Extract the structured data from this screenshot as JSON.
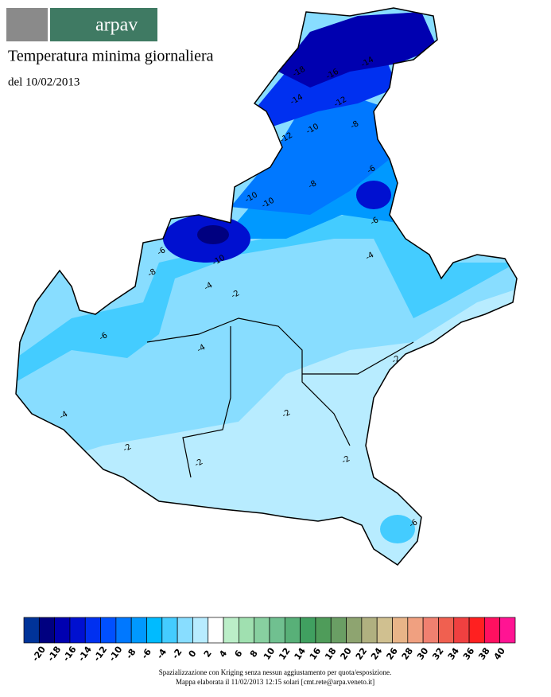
{
  "header": {
    "logo_text": "arpav",
    "title": "Temperatura minima giornaliera",
    "subtitle": "del 10/02/2013"
  },
  "map": {
    "contour_labels": [
      -14,
      -16,
      -18,
      -14,
      -12,
      -10,
      -8,
      -12,
      -8,
      -10,
      -10,
      -6,
      -6,
      -4,
      -6,
      -8,
      -4,
      -2,
      -6,
      -4,
      -4,
      -2,
      -2,
      -2,
      -2,
      -2,
      -6,
      -10
    ]
  },
  "legend": {
    "ticks": [
      -20,
      -18,
      -16,
      -14,
      -12,
      -10,
      -8,
      -6,
      -4,
      -2,
      0,
      2,
      4,
      6,
      8,
      10,
      12,
      14,
      16,
      18,
      20,
      22,
      24,
      26,
      28,
      30,
      32,
      34,
      36,
      38,
      40
    ],
    "colors": [
      "#003399",
      "#000080",
      "#0000b0",
      "#0010d0",
      "#0030f0",
      "#0050ff",
      "#0078ff",
      "#0099ff",
      "#00bbff",
      "#44ccff",
      "#88ddff",
      "#b8ecff",
      "#ffffff",
      "#bbeec8",
      "#a0e0b0",
      "#88d0a0",
      "#70c090",
      "#58b078",
      "#40a060",
      "#4f9c5a",
      "#6a9e64",
      "#8ea470",
      "#b0b080",
      "#d0c090",
      "#e8b488",
      "#f0a080",
      "#f08070",
      "#f06050",
      "#f04040",
      "#ff2020",
      "#ff1060",
      "#ff1493"
    ]
  },
  "footer": {
    "line1": "Spazializzazione con Kriging senza nessun aggiustamento per quota/esposizione.",
    "line2": "Mappa elaborata il 11/02/2013 12:15 solari [cmt.rete@arpa.veneto.it]"
  }
}
